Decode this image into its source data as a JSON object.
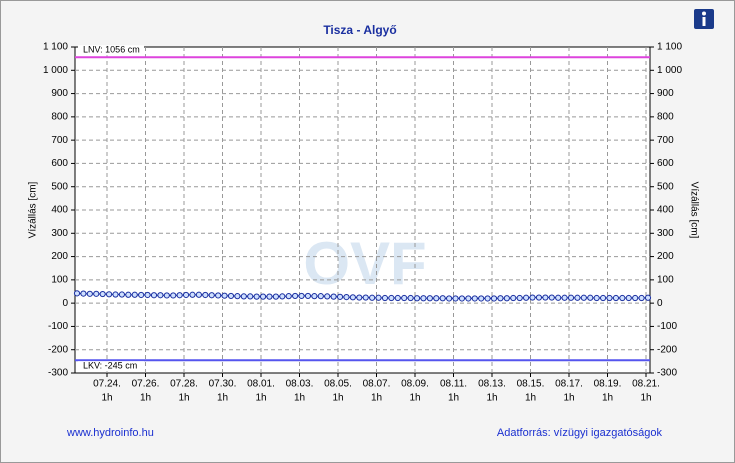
{
  "chart_data": {
    "type": "line",
    "title": "Tisza - Algyő",
    "y_label": "Vízállás [cm]",
    "y2_label": "Vízállás [cm]",
    "watermark": "OVF",
    "ylim": [
      -300,
      1100
    ],
    "yticks": [
      -300,
      -200,
      -100,
      0,
      100,
      200,
      300,
      400,
      500,
      600,
      700,
      800,
      900,
      {
        "value": 1000,
        "label": "1 000"
      },
      {
        "value": 1100,
        "label": "1 100"
      }
    ],
    "grid": true,
    "xticks": [
      {
        "date": "07.24.",
        "hour": "1h"
      },
      {
        "date": "07.26.",
        "hour": "1h"
      },
      {
        "date": "07.28.",
        "hour": "1h"
      },
      {
        "date": "07.30.",
        "hour": "1h"
      },
      {
        "date": "08.01.",
        "hour": "1h"
      },
      {
        "date": "08.03.",
        "hour": "1h"
      },
      {
        "date": "08.05.",
        "hour": "1h"
      },
      {
        "date": "08.07.",
        "hour": "1h"
      },
      {
        "date": "08.09.",
        "hour": "1h"
      },
      {
        "date": "08.11.",
        "hour": "1h"
      },
      {
        "date": "08.13.",
        "hour": "1h"
      },
      {
        "date": "08.15.",
        "hour": "1h"
      },
      {
        "date": "08.17.",
        "hour": "1h"
      },
      {
        "date": "08.19.",
        "hour": "1h"
      },
      {
        "date": "08.21.",
        "hour": "1h"
      }
    ],
    "reference_lines": [
      {
        "label": "LNV: 1056 cm",
        "value": 1056,
        "color": "#dd44dd"
      },
      {
        "label": "LKV: -245 cm",
        "value": -245,
        "color": "#5555ee"
      }
    ],
    "series": [
      {
        "color": "#1a2fa0",
        "values": [
          42,
          41,
          40,
          40,
          39,
          38,
          37,
          37,
          36,
          36,
          35,
          35,
          34,
          34,
          33,
          33,
          34,
          35,
          36,
          36,
          35,
          34,
          33,
          32,
          31,
          30,
          29,
          29,
          28,
          28,
          28,
          28,
          29,
          30,
          31,
          31,
          31,
          30,
          30,
          29,
          28,
          27,
          26,
          25,
          24,
          24,
          23,
          23,
          22,
          22,
          22,
          22,
          22,
          21,
          21,
          21,
          21,
          21,
          20,
          20,
          20,
          20,
          20,
          20,
          20,
          20,
          21,
          21,
          22,
          22,
          23,
          24,
          24,
          24,
          24,
          23,
          23,
          23,
          23,
          23,
          23,
          22,
          22,
          22,
          22,
          22,
          22,
          22,
          22,
          23
        ]
      }
    ],
    "footer_left": "www.hydroinfo.hu",
    "footer_right": "Adatforrás: vízügyi igazgatóságok"
  }
}
